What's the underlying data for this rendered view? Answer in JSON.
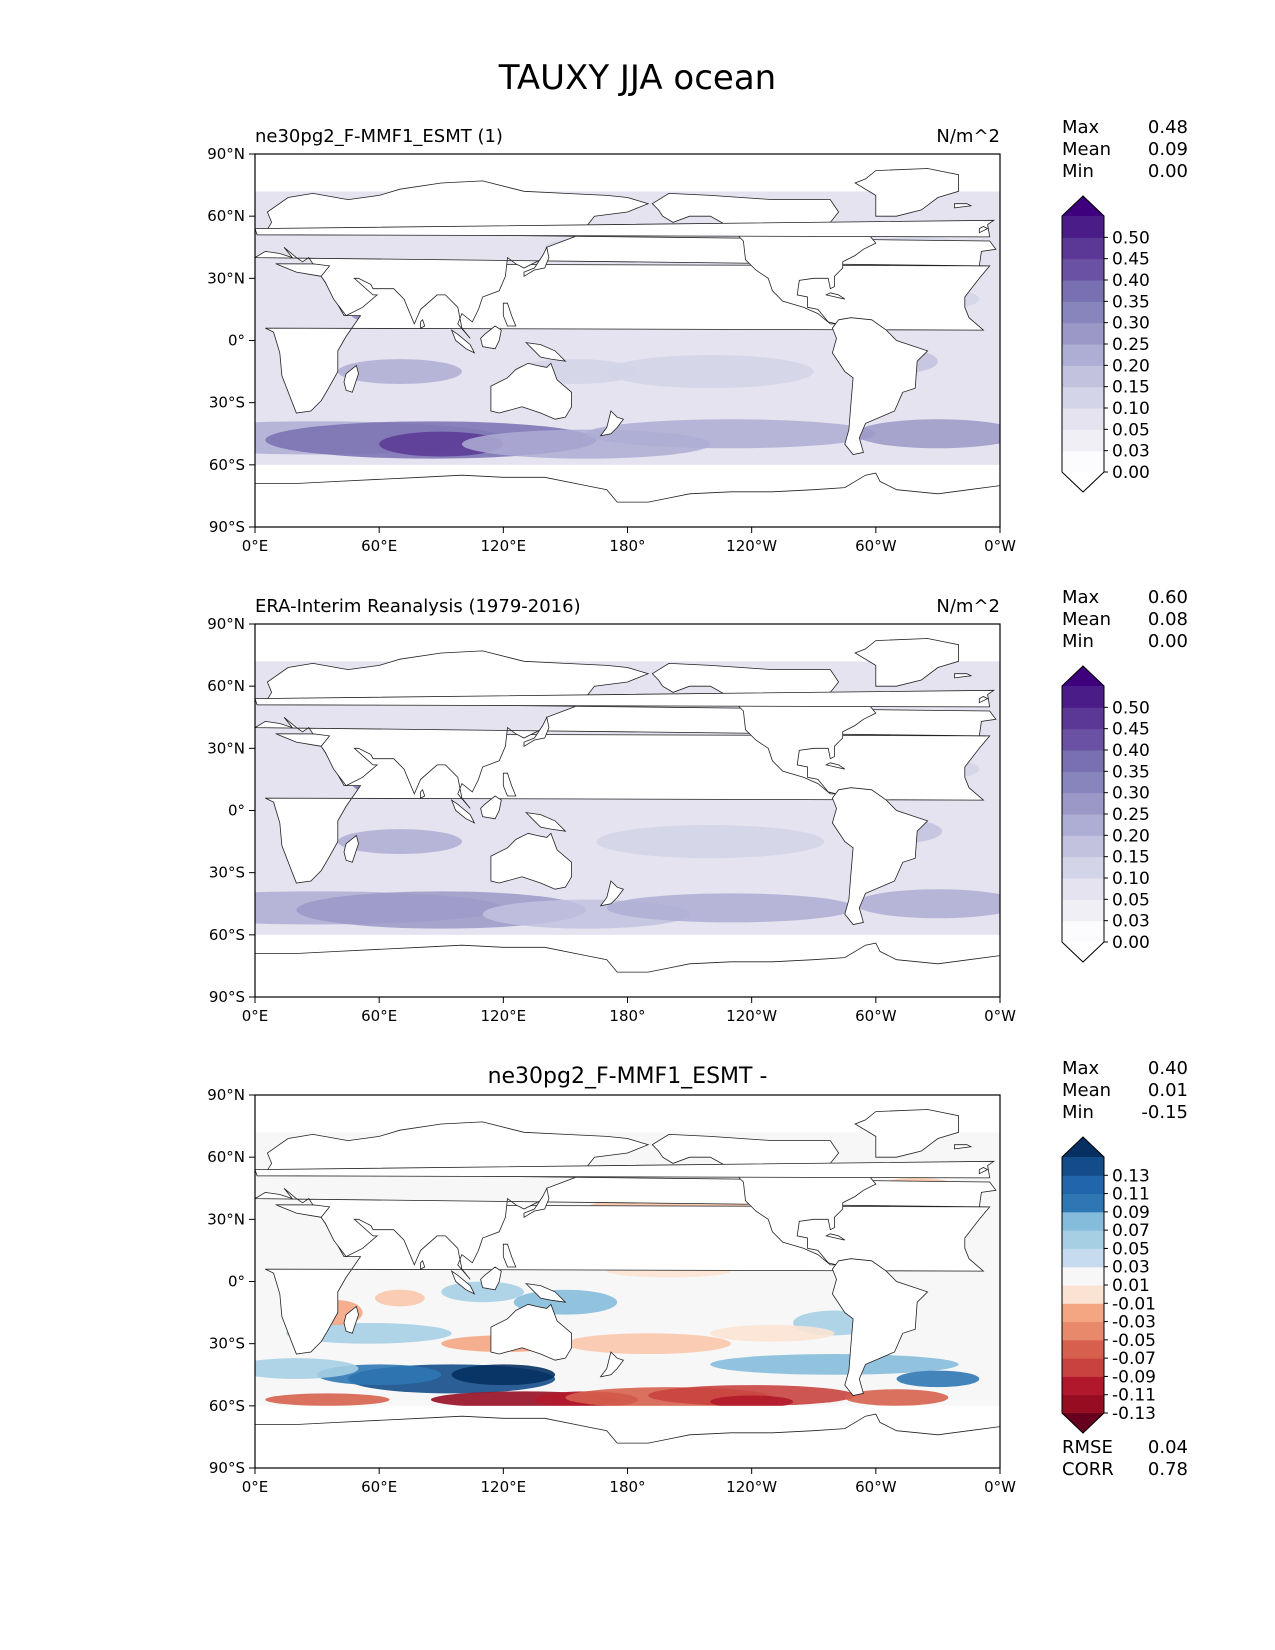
{
  "figure": {
    "title": "TAUXY JJA ocean"
  },
  "axes": {
    "lat_ticks": [
      "90°N",
      "60°N",
      "30°N",
      "0°",
      "30°S",
      "60°S",
      "90°S"
    ],
    "lon_ticks": [
      "0°E",
      "60°E",
      "120°E",
      "180°",
      "120°W",
      "60°W",
      "0°W"
    ]
  },
  "colors": {
    "sequential": [
      "#fcfbfd",
      "#f1eff6",
      "#e4e3ef",
      "#d4d4e8",
      "#c2c2df",
      "#aeadd3",
      "#9b98c7",
      "#8884bc",
      "#7870b1",
      "#6a51a3",
      "#5b3895",
      "#4a1c88",
      "#3f007d"
    ],
    "diverging": [
      "#67001f",
      "#960d22",
      "#b2182b",
      "#c8423f",
      "#d6604d",
      "#e8896c",
      "#f4a582",
      "#f9c6ab",
      "#fbe3d4",
      "#f7f7f7",
      "#e0ecf4",
      "#c6dbef",
      "#a6cfe4",
      "#85bcdb",
      "#4393c3",
      "#2f77b4",
      "#2166ac",
      "#134c88",
      "#053061"
    ],
    "land": "#ffffff",
    "ocean_missing": "#ffffff"
  },
  "panels": [
    {
      "left_title": "ne30pg2_F-MMF1_ESMT (1)",
      "center_title": "",
      "right_title": "N/m^2",
      "stats": [
        {
          "label": "Max",
          "value": "0.48"
        },
        {
          "label": "Mean",
          "value": "0.09"
        },
        {
          "label": "Min",
          "value": "0.00"
        }
      ],
      "colorbar_ticks": [
        "0.50",
        "0.45",
        "0.40",
        "0.35",
        "0.30",
        "0.25",
        "0.20",
        "0.15",
        "0.10",
        "0.05",
        "0.03",
        "0.00"
      ],
      "bottom_stats": []
    },
    {
      "left_title": "ERA-Interim Reanalysis (1979-2016)",
      "center_title": "",
      "right_title": "N/m^2",
      "stats": [
        {
          "label": "Max",
          "value": "0.60"
        },
        {
          "label": "Mean",
          "value": "0.08"
        },
        {
          "label": "Min",
          "value": "0.00"
        }
      ],
      "colorbar_ticks": [
        "0.50",
        "0.45",
        "0.40",
        "0.35",
        "0.30",
        "0.25",
        "0.20",
        "0.15",
        "0.10",
        "0.05",
        "0.03",
        "0.00"
      ],
      "bottom_stats": []
    },
    {
      "left_title": "",
      "center_title": "ne30pg2_F-MMF1_ESMT -",
      "right_title": "",
      "stats": [
        {
          "label": "Max",
          "value": "0.40"
        },
        {
          "label": "Mean",
          "value": "0.01"
        },
        {
          "label": "Min",
          "value": "-0.15"
        }
      ],
      "colorbar_ticks": [
        "0.13",
        "0.11",
        "0.09",
        "0.07",
        "0.05",
        "0.03",
        "0.01",
        "-0.01",
        "-0.03",
        "-0.05",
        "-0.07",
        "-0.09",
        "-0.11",
        "-0.13"
      ],
      "bottom_stats": [
        {
          "label": "RMSE",
          "value": "0.04"
        },
        {
          "label": "CORR",
          "value": "0.78"
        }
      ]
    }
  ]
}
